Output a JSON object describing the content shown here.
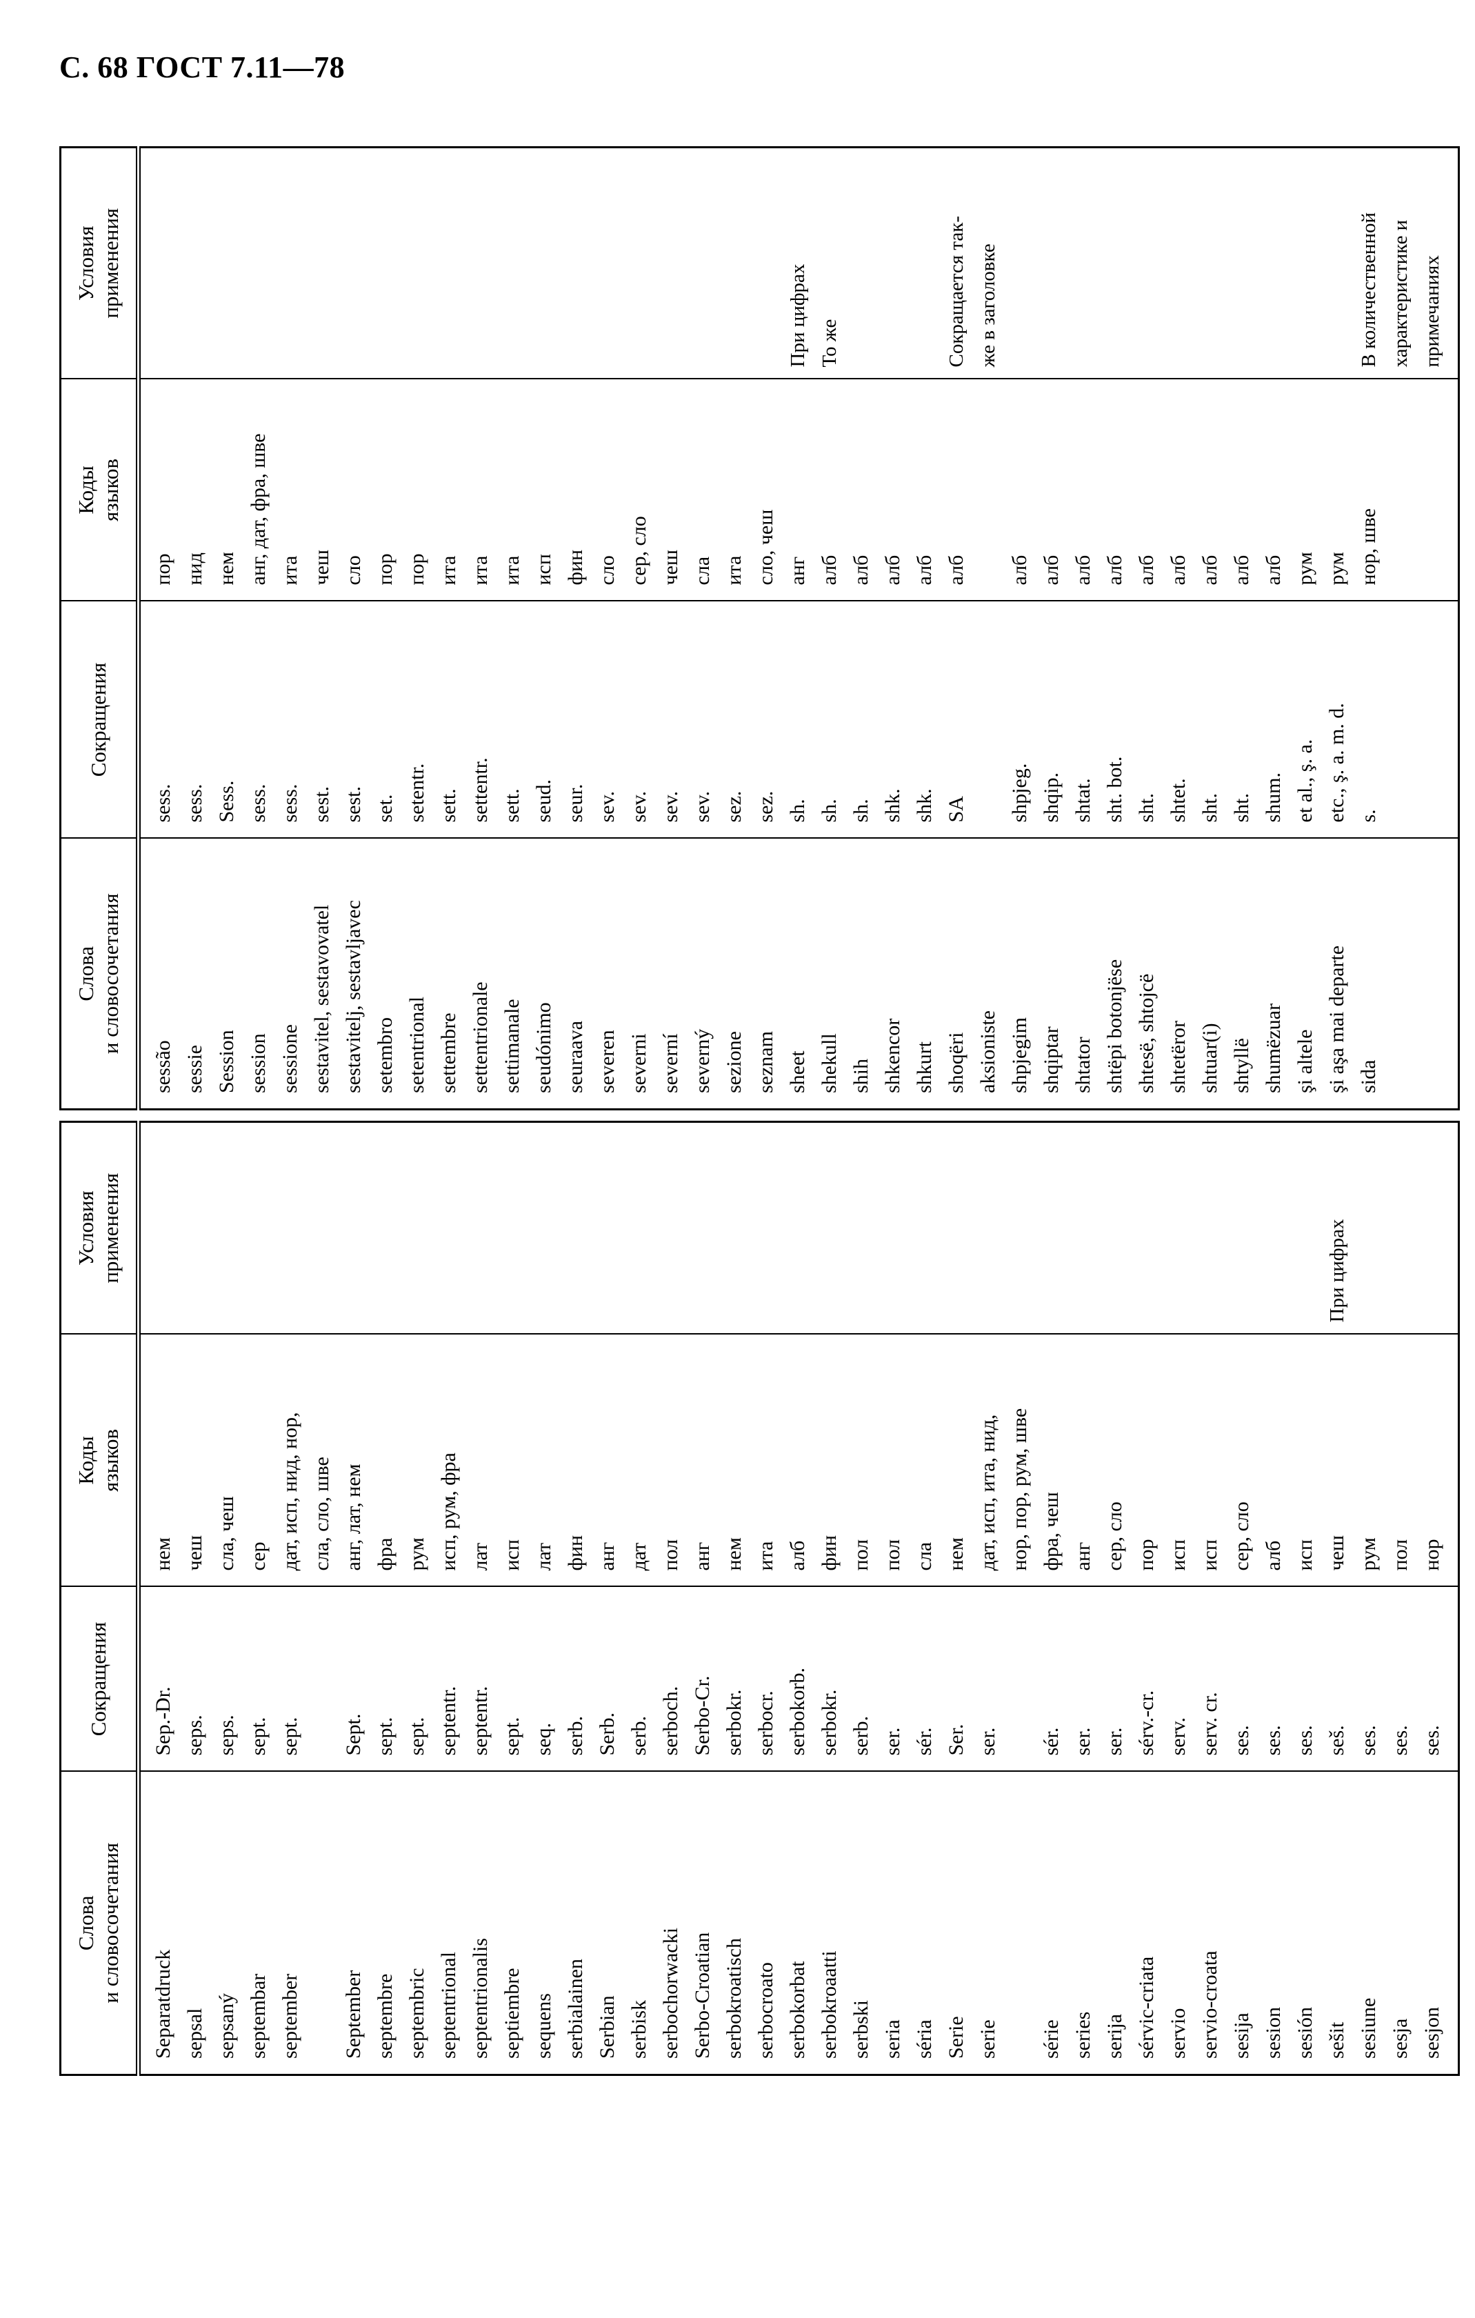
{
  "page": {
    "title": "С. 68 ГОСТ 7.11—78"
  },
  "headers": {
    "word": "Слова\nи словосочетания",
    "abbr": "Сокращения",
    "codes": "Коды\nязыков",
    "conditions": "Условия\nприменения"
  },
  "table_upper": {
    "rows": [
      {
        "word": "sessão",
        "abbr": "sess.",
        "codes": "пор",
        "cond": ""
      },
      {
        "word": "sessie",
        "abbr": "sess.",
        "codes": "нид",
        "cond": ""
      },
      {
        "word": "Session",
        "abbr": "Sess.",
        "codes": "нем",
        "cond": ""
      },
      {
        "word": "session",
        "abbr": "sess.",
        "codes": "анг, дат, фра, шве",
        "cond": ""
      },
      {
        "word": "sessione",
        "abbr": "sess.",
        "codes": "ита",
        "cond": ""
      },
      {
        "word": "sestavitel, sestavovatel",
        "abbr": "sest.",
        "codes": "чеш",
        "cond": ""
      },
      {
        "word": "sestavitelj, sestavljavec",
        "abbr": "sest.",
        "codes": "сло",
        "cond": ""
      },
      {
        "word": "setembro",
        "abbr": "set.",
        "codes": "пор",
        "cond": ""
      },
      {
        "word": "setentrional",
        "abbr": "setentr.",
        "codes": "пор",
        "cond": ""
      },
      {
        "word": "settembre",
        "abbr": "sett.",
        "codes": "ита",
        "cond": ""
      },
      {
        "word": "settentrionale",
        "abbr": "settentr.",
        "codes": "ита",
        "cond": ""
      },
      {
        "word": "settimanale",
        "abbr": "sett.",
        "codes": "ита",
        "cond": ""
      },
      {
        "word": "seudónimo",
        "abbr": "seud.",
        "codes": "исп",
        "cond": ""
      },
      {
        "word": "seuraava",
        "abbr": "seur.",
        "codes": "фин",
        "cond": ""
      },
      {
        "word": "severen",
        "abbr": "sev.",
        "codes": "сло",
        "cond": ""
      },
      {
        "word": "severni",
        "abbr": "sev.",
        "codes": "сер, сло",
        "cond": ""
      },
      {
        "word": "severní",
        "abbr": "sev.",
        "codes": "чеш",
        "cond": ""
      },
      {
        "word": "severný",
        "abbr": "sev.",
        "codes": "сла",
        "cond": ""
      },
      {
        "word": "sezione",
        "abbr": "sez.",
        "codes": "ита",
        "cond": ""
      },
      {
        "word": "seznam",
        "abbr": "sez.",
        "codes": "сло, чеш",
        "cond": ""
      },
      {
        "word": "sheet",
        "abbr": "sh.",
        "codes": "анг",
        "cond": "При цифрах"
      },
      {
        "word": "shekull",
        "abbr": "sh.",
        "codes": "алб",
        "cond": "То же"
      },
      {
        "word": "shih",
        "abbr": "sh.",
        "codes": "алб",
        "cond": ""
      },
      {
        "word": "shkencor",
        "abbr": "shk.",
        "codes": "алб",
        "cond": ""
      },
      {
        "word": "shkurt",
        "abbr": "shk.",
        "codes": "алб",
        "cond": ""
      },
      {
        "word": "shoqëri\naksioniste",
        "abbr": "SA",
        "codes": "алб",
        "cond": "Сокращается так-\nже в заголовке"
      },
      {
        "word": "shpjegim",
        "abbr": "shpjeg.",
        "codes": "алб",
        "cond": ""
      },
      {
        "word": "shqiptar",
        "abbr": "shqip.",
        "codes": "алб",
        "cond": ""
      },
      {
        "word": "shtator",
        "abbr": "shtat.",
        "codes": "алб",
        "cond": ""
      },
      {
        "word": "shtëpi botonjëse",
        "abbr": "sht. bot.",
        "codes": "алб",
        "cond": ""
      },
      {
        "word": "shtesë, shtojcë",
        "abbr": "sht.",
        "codes": "алб",
        "cond": ""
      },
      {
        "word": "shtetëror",
        "abbr": "shtet.",
        "codes": "алб",
        "cond": ""
      },
      {
        "word": "shtuar(i)",
        "abbr": "sht.",
        "codes": "алб",
        "cond": ""
      },
      {
        "word": "shtyllë",
        "abbr": "sht.",
        "codes": "алб",
        "cond": ""
      },
      {
        "word": "shumëzuar",
        "abbr": "shum.",
        "codes": "алб",
        "cond": ""
      },
      {
        "word": "şi altele",
        "abbr": "et al., ş. a.",
        "codes": "рум",
        "cond": ""
      },
      {
        "word": "şi aşa mai departe",
        "abbr": "etc., ş. a. m. d.",
        "codes": "рум",
        "cond": ""
      },
      {
        "word": "sida",
        "abbr": "s.",
        "codes": "нор, шве",
        "cond": "В количественной\nхарактеристике и\nпримечаниях"
      }
    ]
  },
  "table_lower": {
    "rows": [
      {
        "word": "Separatdruck",
        "abbr": "Sep.-Dr.",
        "codes": "нем",
        "cond": ""
      },
      {
        "word": "sepsal",
        "abbr": "seps.",
        "codes": "чеш",
        "cond": ""
      },
      {
        "word": "sepsaný",
        "abbr": "seps.",
        "codes": "сла, чеш",
        "cond": ""
      },
      {
        "word": "septembar",
        "abbr": "sept.",
        "codes": "сер",
        "cond": ""
      },
      {
        "word": "september",
        "abbr": "sept.",
        "codes": "дат, исп, нид, нор,\nсла, сло, шве",
        "cond": ""
      },
      {
        "word": "September",
        "abbr": "Sept.",
        "codes": "анг, лат, нем",
        "cond": ""
      },
      {
        "word": "septembre",
        "abbr": "sept.",
        "codes": "фра",
        "cond": ""
      },
      {
        "word": "septembric",
        "abbr": "sept.",
        "codes": "рум",
        "cond": ""
      },
      {
        "word": "septentrional",
        "abbr": "septentr.",
        "codes": "исп, рум, фра",
        "cond": ""
      },
      {
        "word": "septentrionalis",
        "abbr": "septentr.",
        "codes": "лат",
        "cond": ""
      },
      {
        "word": "septiembre",
        "abbr": "sept.",
        "codes": "исп",
        "cond": ""
      },
      {
        "word": "sequens",
        "abbr": "seq.",
        "codes": "лат",
        "cond": ""
      },
      {
        "word": "serbialainen",
        "abbr": "serb.",
        "codes": "фин",
        "cond": ""
      },
      {
        "word": "Serbian",
        "abbr": "Serb.",
        "codes": "анг",
        "cond": ""
      },
      {
        "word": "serbisk",
        "abbr": "serb.",
        "codes": "дат",
        "cond": ""
      },
      {
        "word": "serbochorwacki",
        "abbr": "serboch.",
        "codes": "пол",
        "cond": ""
      },
      {
        "word": "Serbo-Croatian",
        "abbr": "Serbo-Cr.",
        "codes": "анг",
        "cond": ""
      },
      {
        "word": "serbokroatisch",
        "abbr": "serbokr.",
        "codes": "нем",
        "cond": ""
      },
      {
        "word": "serbocroato",
        "abbr": "serbocr.",
        "codes": "ита",
        "cond": ""
      },
      {
        "word": "serbokorbat",
        "abbr": "serbokorb.",
        "codes": "алб",
        "cond": ""
      },
      {
        "word": "serbokroaatti",
        "abbr": "serbokr.",
        "codes": "фин",
        "cond": ""
      },
      {
        "word": "serbski",
        "abbr": "serb.",
        "codes": "пол",
        "cond": ""
      },
      {
        "word": "seria",
        "abbr": "ser.",
        "codes": "пол",
        "cond": ""
      },
      {
        "word": "séria",
        "abbr": "sér.",
        "codes": "сла",
        "cond": ""
      },
      {
        "word": "Serie",
        "abbr": "Ser.",
        "codes": "нем",
        "cond": ""
      },
      {
        "word": "serie",
        "abbr": "ser.",
        "codes": "дат, исп, ита, нид,\nнор, пор, рум, шве",
        "cond": ""
      },
      {
        "word": "série",
        "abbr": "sér.",
        "codes": "фра, чеш",
        "cond": ""
      },
      {
        "word": "series",
        "abbr": "ser.",
        "codes": "анг",
        "cond": ""
      },
      {
        "word": "serija",
        "abbr": "ser.",
        "codes": "сер, сло",
        "cond": ""
      },
      {
        "word": "sérvic-criata",
        "abbr": "sérv.-cr.",
        "codes": "пор",
        "cond": ""
      },
      {
        "word": "servio",
        "abbr": "serv.",
        "codes": "исп",
        "cond": ""
      },
      {
        "word": "servio-croata",
        "abbr": "serv. cr.",
        "codes": "исп",
        "cond": ""
      },
      {
        "word": "sesija",
        "abbr": "ses.",
        "codes": "сер, сло",
        "cond": ""
      },
      {
        "word": "sesion",
        "abbr": "ses.",
        "codes": "алб",
        "cond": ""
      },
      {
        "word": "sesión",
        "abbr": "ses.",
        "codes": "исп",
        "cond": ""
      },
      {
        "word": "sešit",
        "abbr": "seš.",
        "codes": "чеш",
        "cond": "При цифрах"
      },
      {
        "word": "sesiune",
        "abbr": "ses.",
        "codes": "рум",
        "cond": ""
      },
      {
        "word": "sesja",
        "abbr": "ses.",
        "codes": "пол",
        "cond": ""
      },
      {
        "word": "sesjon",
        "abbr": "ses.",
        "codes": "нор",
        "cond": ""
      }
    ]
  }
}
